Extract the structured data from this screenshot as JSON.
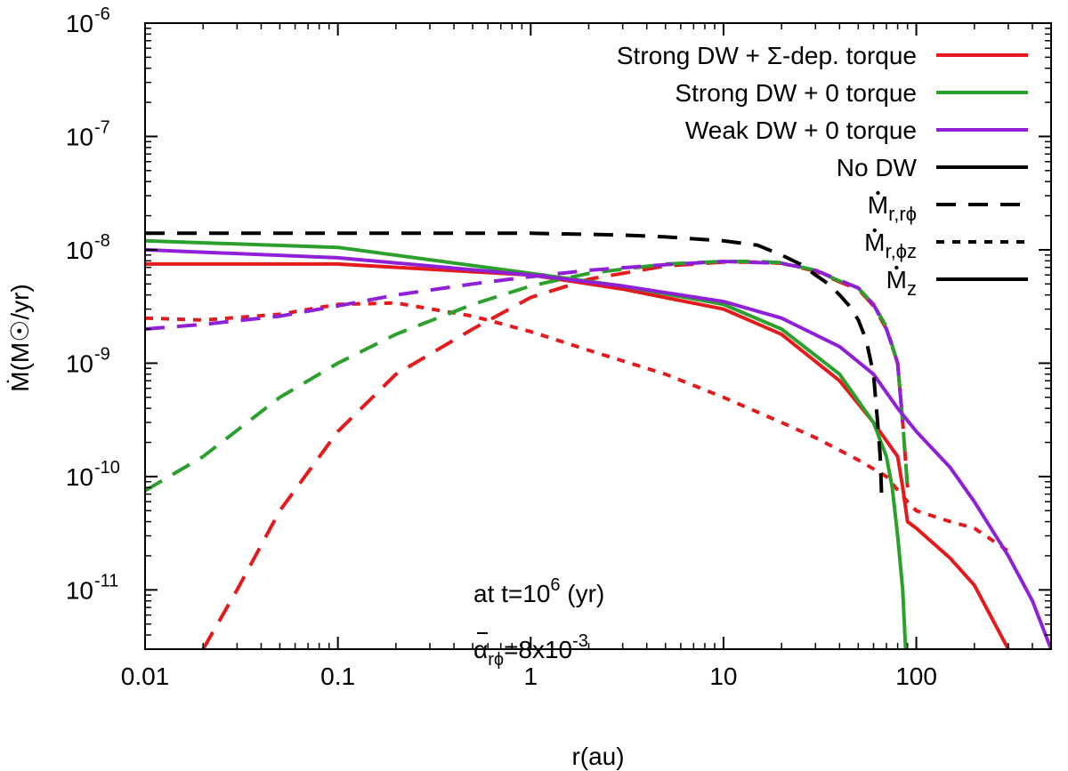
{
  "chart_data": {
    "type": "line",
    "xlabel": "r(au)",
    "ylabel": "Ṁ(M☉/yr)",
    "x_scale": "log",
    "y_scale": "log",
    "xlim": [
      0.01,
      500
    ],
    "ylim": [
      3e-12,
      1e-06
    ],
    "x_ticks": [
      {
        "value": 0.01,
        "label": "0.01"
      },
      {
        "value": 0.1,
        "label": "0.1"
      },
      {
        "value": 1,
        "label": "1"
      },
      {
        "value": 10,
        "label": "10"
      },
      {
        "value": 100,
        "label": "100"
      }
    ],
    "y_ticks": [
      {
        "value": 1e-11,
        "base": "10",
        "exp": "-11"
      },
      {
        "value": 1e-10,
        "base": "10",
        "exp": "-10"
      },
      {
        "value": 1e-09,
        "base": "10",
        "exp": "-9"
      },
      {
        "value": 1e-08,
        "base": "10",
        "exp": "-8"
      },
      {
        "value": 1e-07,
        "base": "10",
        "exp": "-7"
      },
      {
        "value": 1e-06,
        "base": "10",
        "exp": "-6"
      }
    ],
    "grid": false,
    "legend_position": "top-right",
    "legend": [
      {
        "label": "Strong DW + Σ-dep. torque",
        "color": "#e41a1c",
        "style": "solid"
      },
      {
        "label": "Strong DW + 0 torque",
        "color": "#2ca02c",
        "style": "solid"
      },
      {
        "label": "Weak DW + 0 torque",
        "color": "#8f20d8",
        "style": "solid"
      },
      {
        "label": "No DW",
        "color": "#000000",
        "style": "solid"
      },
      {
        "label": "Ṁr,rϕ",
        "main": "M",
        "sub": "r,rϕ",
        "color": "#000000",
        "style": "dashed"
      },
      {
        "label": "Ṁr,ϕz",
        "main": "M",
        "sub": "r,ϕz",
        "color": "#000000",
        "style": "dotted"
      },
      {
        "label": "Ṁz",
        "main": "M",
        "sub": "z",
        "color": "#000000",
        "style": "solid"
      }
    ],
    "annotations": [
      {
        "text": "at t=10",
        "sup": "6",
        "tail": " (yr)"
      },
      {
        "text": "α",
        "sub": "rϕ",
        "tail": "=8x10",
        "sup": "-3"
      }
    ],
    "colors": {
      "strong_sigma": "#e41a1c",
      "strong_zero": "#2ca02c",
      "weak_zero": "#8f20d8",
      "no_dw": "#000000"
    },
    "series": [
      {
        "group": "strong_sigma",
        "component": "z",
        "style": "solid",
        "x": [
          0.01,
          0.1,
          1,
          3,
          10,
          20,
          40,
          60,
          80,
          85,
          90,
          100,
          150,
          200,
          300
        ],
        "y": [
          7.5e-09,
          7.5e-09,
          6e-09,
          4.5e-09,
          3e-09,
          1.8e-09,
          7e-10,
          3e-10,
          1.5e-10,
          8e-11,
          4e-11,
          3.5e-11,
          1.9e-11,
          1.1e-11,
          3e-12
        ]
      },
      {
        "group": "strong_sigma",
        "component": "r_rphi",
        "style": "dashed",
        "x": [
          0.02,
          0.03,
          0.05,
          0.1,
          0.2,
          0.5,
          1,
          2,
          5,
          10,
          15,
          20,
          30,
          40,
          50,
          60,
          70,
          80,
          85,
          90
        ],
        "y": [
          3e-12,
          1e-11,
          5e-11,
          2.5e-10,
          8e-10,
          2e-09,
          3.8e-09,
          5.5e-09,
          7.2e-09,
          7.8e-09,
          7.8e-09,
          7.6e-09,
          6.5e-09,
          5.2e-09,
          4.5e-09,
          3.2e-09,
          2e-09,
          1e-09,
          3e-10,
          8e-11
        ]
      },
      {
        "group": "strong_sigma",
        "component": "r_phiz",
        "style": "dotted",
        "x": [
          0.01,
          0.02,
          0.05,
          0.1,
          0.2,
          0.5,
          1,
          2,
          5,
          10,
          20,
          30,
          50,
          70,
          90,
          100,
          150,
          200,
          300
        ],
        "y": [
          2.5e-09,
          2.4e-09,
          2.7e-09,
          3.3e-09,
          3.4e-09,
          2.6e-09,
          1.9e-09,
          1.3e-09,
          8e-10,
          5e-10,
          3e-10,
          2.2e-10,
          1.4e-10,
          1e-10,
          6e-11,
          5e-11,
          4e-11,
          3.5e-11,
          2.2e-11
        ]
      },
      {
        "group": "strong_zero",
        "component": "z",
        "style": "solid",
        "x": [
          0.01,
          0.1,
          1,
          3,
          10,
          20,
          40,
          60,
          70,
          75,
          80,
          85,
          88
        ],
        "y": [
          1.2e-08,
          1.05e-08,
          6.2e-09,
          4.8e-09,
          3.3e-09,
          2e-09,
          8e-10,
          3e-10,
          1.5e-10,
          8e-11,
          3e-11,
          1e-11,
          3e-12
        ]
      },
      {
        "group": "strong_zero",
        "component": "r_rphi",
        "style": "dashed",
        "x": [
          0.01,
          0.02,
          0.05,
          0.1,
          0.2,
          0.5,
          1,
          2,
          5,
          10,
          15,
          20,
          30,
          40,
          50,
          60,
          70,
          80,
          85,
          90
        ],
        "y": [
          7.5e-11,
          1.5e-10,
          5e-10,
          1e-09,
          1.8e-09,
          3.3e-09,
          4.8e-09,
          6.2e-09,
          7.5e-09,
          7.9e-09,
          7.9e-09,
          7.7e-09,
          6.6e-09,
          5.3e-09,
          4.6e-09,
          3.3e-09,
          2.1e-09,
          1e-09,
          3e-10,
          8e-11
        ]
      },
      {
        "group": "weak_zero",
        "component": "z",
        "style": "solid",
        "x": [
          0.01,
          0.1,
          1,
          3,
          10,
          20,
          40,
          60,
          80,
          100,
          150,
          200,
          300,
          400,
          500
        ],
        "y": [
          1e-08,
          8.5e-09,
          6e-09,
          4.8e-09,
          3.5e-09,
          2.5e-09,
          1.4e-09,
          8e-10,
          4e-10,
          2.5e-10,
          1.2e-10,
          6e-11,
          2e-11,
          8e-12,
          3e-12
        ]
      },
      {
        "group": "weak_zero",
        "component": "r_rphi",
        "style": "dashed",
        "x": [
          0.01,
          0.02,
          0.05,
          0.1,
          0.2,
          0.5,
          1,
          2,
          5,
          10,
          20,
          30,
          40,
          50,
          60,
          70,
          80,
          85
        ],
        "y": [
          2e-09,
          2.2e-09,
          2.6e-09,
          3.2e-09,
          4e-09,
          5e-09,
          5.8e-09,
          6.6e-09,
          7.4e-09,
          7.9e-09,
          7.6e-09,
          6.6e-09,
          5.4e-09,
          4.6e-09,
          3.3e-09,
          2e-09,
          1e-09,
          3e-10
        ]
      },
      {
        "group": "no_dw",
        "component": "r_rphi",
        "style": "dashed",
        "x": [
          0.01,
          0.1,
          1,
          3,
          5,
          10,
          15,
          20,
          25,
          30,
          35,
          40,
          45,
          50,
          55,
          60,
          63,
          65,
          66
        ],
        "y": [
          1.4e-08,
          1.4e-08,
          1.4e-08,
          1.35e-08,
          1.3e-08,
          1.2e-08,
          1.1e-08,
          9e-09,
          7.5e-09,
          6e-09,
          5e-09,
          4e-09,
          3.2e-09,
          2.4e-09,
          1.6e-09,
          8e-10,
          3e-10,
          1.5e-10,
          7e-11
        ]
      }
    ]
  }
}
